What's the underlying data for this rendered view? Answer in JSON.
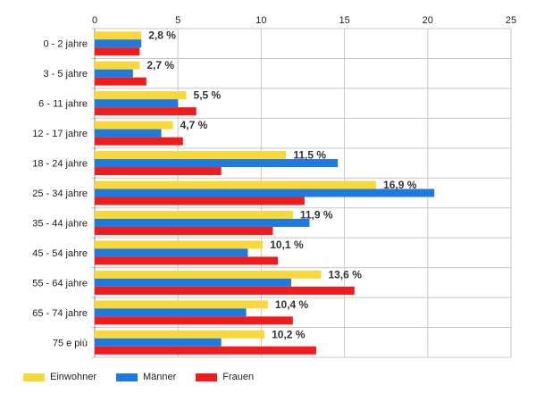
{
  "chart_data": {
    "type": "bar",
    "orientation": "horizontal",
    "categories": [
      "0 - 2 jahre",
      "3 - 5 jahre",
      "6 - 11 jahre",
      "12 - 17 jahre",
      "18 - 24 jahre",
      "25 - 34 jahre",
      "35 - 44 jahre",
      "45 - 54 jahre",
      "55 - 64 jahre",
      "65 - 74 jahre",
      "75 e più"
    ],
    "series": [
      {
        "name": "Einwohner",
        "color": "#f8d83a",
        "values": [
          2.8,
          2.7,
          5.5,
          4.7,
          11.5,
          16.9,
          11.9,
          10.1,
          13.6,
          10.4,
          10.2
        ]
      },
      {
        "name": "Männer",
        "color": "#1f7ae0",
        "values": [
          2.8,
          2.3,
          5.0,
          4.0,
          14.6,
          20.4,
          12.9,
          9.2,
          11.8,
          9.1,
          7.6
        ]
      },
      {
        "name": "Frauen",
        "color": "#ee1c1c",
        "values": [
          2.7,
          3.1,
          6.1,
          5.3,
          7.6,
          12.6,
          10.7,
          11.0,
          15.6,
          11.9,
          13.3
        ]
      }
    ],
    "data_labels": [
      "2,8 %",
      "2,7 %",
      "5,5 %",
      "4,7 %",
      "11,5 %",
      "16,9 %",
      "11,9 %",
      "10,1 %",
      "13,6 %",
      "10,4 %",
      "10,2 %"
    ],
    "x_ticks": [
      "0",
      "5",
      "10",
      "15",
      "20",
      "25"
    ],
    "xlim": [
      0,
      25
    ],
    "xlabel": "",
    "ylabel": "",
    "title": "",
    "grid": true,
    "legend_position": "bottom-left"
  }
}
